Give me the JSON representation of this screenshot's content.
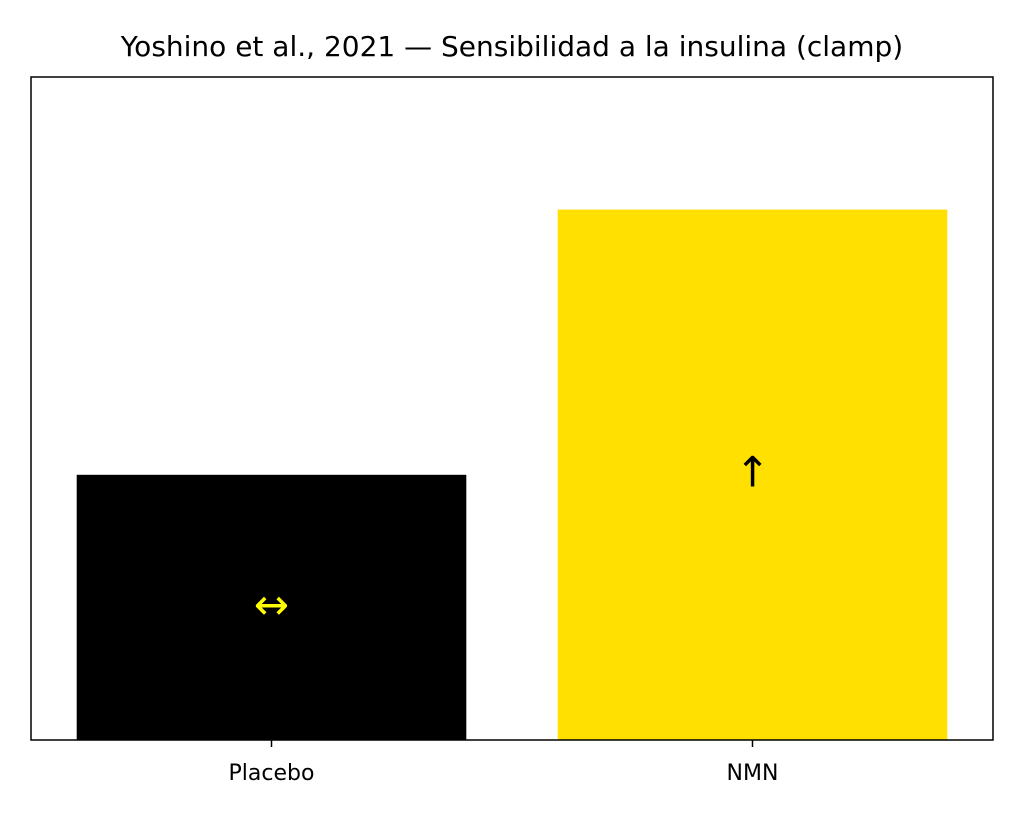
{
  "chart_data": {
    "type": "bar",
    "title": "Yoshino et al., 2021 — Sensibilidad a la insulina (clamp)",
    "categories": [
      "Placebo",
      "NMN"
    ],
    "values": [
      1,
      2
    ],
    "colors": [
      "#000000",
      "#ffe000"
    ],
    "annotations": [
      "↔",
      "↑"
    ],
    "annotation_colors": [
      "#ffff00",
      "#000000"
    ],
    "ylim": [
      0,
      2.5
    ]
  }
}
